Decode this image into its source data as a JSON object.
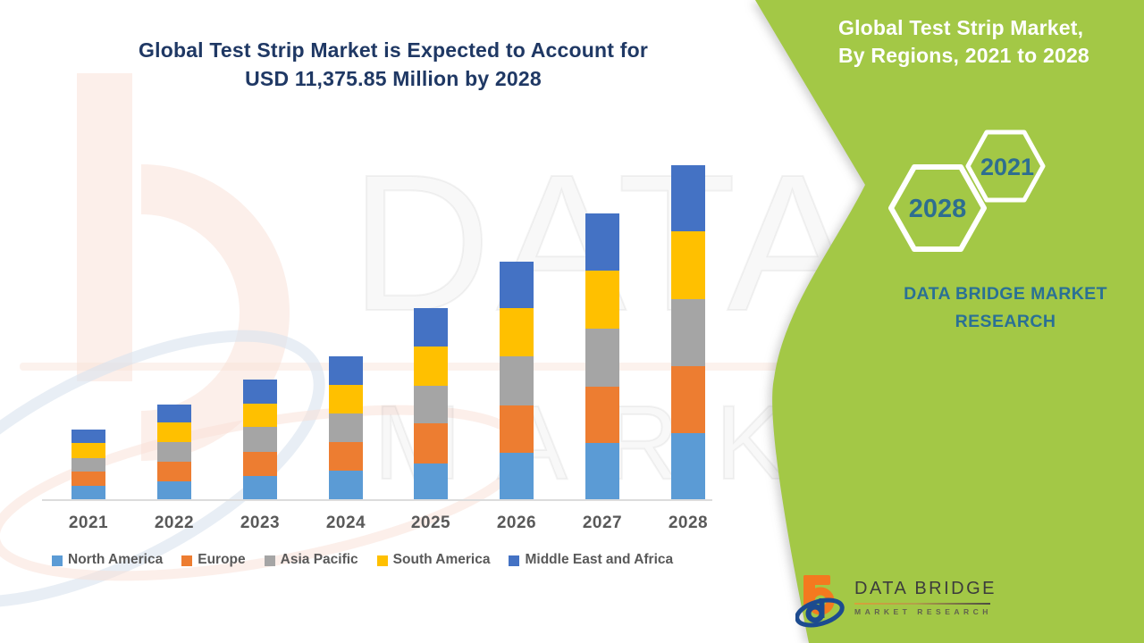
{
  "title": {
    "line1": "Global Test Strip Market is Expected to Account for",
    "line2": "USD 11,375.85 Million by 2028",
    "color": "#1F3864"
  },
  "side_panel": {
    "heading_line1": "Global Test Strip Market,",
    "heading_line2": "By Regions, 2021 to 2028",
    "panel_color": "#A3C846",
    "hexagon_small_year": "2021",
    "hexagon_large_year": "2028",
    "hexagon_text_color": "#2E6E90",
    "brand_line1": "DATA BRIDGE MARKET",
    "brand_line2": "RESEARCH",
    "brand_text_color": "#2A7095"
  },
  "watermark": {
    "line1": "DATA BRIDGE",
    "line2": "MARKET RESEARCH"
  },
  "logo": {
    "name": "DATA BRIDGE",
    "subtitle": "MARKET  RESEARCH"
  },
  "chart_data": {
    "type": "bar",
    "stacked": true,
    "unit": "USD Million",
    "title": "Global Test Strip Market is Expected to Account for USD 11,375.85 Million by 2028",
    "xlabel": "",
    "ylabel": "",
    "grid": false,
    "y_axis_visible": false,
    "legend_position": "bottom",
    "categories": [
      "2021",
      "2022",
      "2023",
      "2024",
      "2025",
      "2026",
      "2027",
      "2028"
    ],
    "series": [
      {
        "name": "North America",
        "color": "#5B9BD5",
        "values": [
          456,
          608,
          791,
          973,
          1217,
          1582,
          1916,
          2251
        ]
      },
      {
        "name": "Europe",
        "color": "#ED7D31",
        "values": [
          487,
          669,
          821,
          973,
          1369,
          1612,
          1916,
          2281
        ]
      },
      {
        "name": "Asia Pacific",
        "color": "#A5A5A5",
        "values": [
          456,
          669,
          852,
          973,
          1278,
          1673,
          1977,
          2281
        ]
      },
      {
        "name": "South America",
        "color": "#FFC000",
        "values": [
          517,
          669,
          791,
          973,
          1338,
          1642,
          1977,
          2312
        ]
      },
      {
        "name": "Middle East and Africa",
        "color": "#4472C4",
        "values": [
          456,
          608,
          821,
          973,
          1308,
          1582,
          1947,
          2251
        ]
      }
    ],
    "approx_totals": [
      2372,
      3223,
      4076,
      4865,
      6510,
      8091,
      9733,
      11376
    ],
    "final_year_total_label": "USD 11,375.85 Million by 2028"
  }
}
